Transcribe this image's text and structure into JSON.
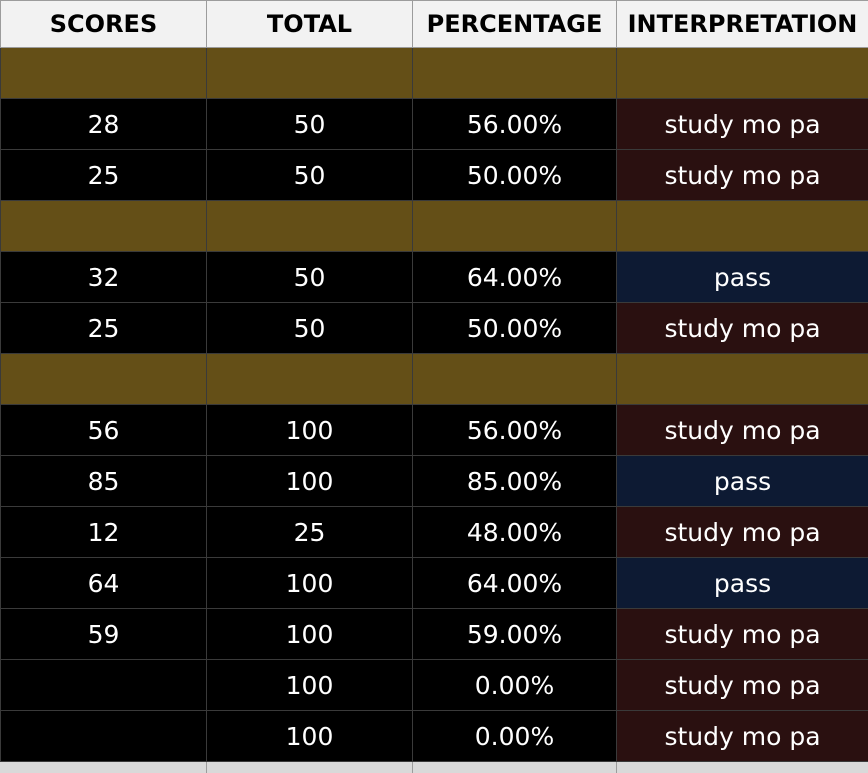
{
  "header": {
    "scores": "SCORES",
    "total": "TOTAL",
    "percentage": "PERCENTAGE",
    "interpretation": "INTERPRETATION"
  },
  "colors": {
    "band": "#644f17",
    "fail": "#2a1010",
    "pass": "#0d1a33",
    "header_bg": "#f2f2f2"
  },
  "rows": [
    {
      "type": "band"
    },
    {
      "score": "28",
      "total": "50",
      "percentage": "56.00%",
      "interpretation": "study mo pa",
      "status": "fail"
    },
    {
      "score": "25",
      "total": "50",
      "percentage": "50.00%",
      "interpretation": "study mo pa",
      "status": "fail"
    },
    {
      "type": "band"
    },
    {
      "score": "32",
      "total": "50",
      "percentage": "64.00%",
      "interpretation": "pass",
      "status": "pass"
    },
    {
      "score": "25",
      "total": "50",
      "percentage": "50.00%",
      "interpretation": "study mo pa",
      "status": "fail"
    },
    {
      "type": "band"
    },
    {
      "score": "56",
      "total": "100",
      "percentage": "56.00%",
      "interpretation": "study mo pa",
      "status": "fail"
    },
    {
      "score": "85",
      "total": "100",
      "percentage": "85.00%",
      "interpretation": "pass",
      "status": "pass"
    },
    {
      "score": "12",
      "total": "25",
      "percentage": "48.00%",
      "interpretation": "study mo pa",
      "status": "fail"
    },
    {
      "score": "64",
      "total": "100",
      "percentage": "64.00%",
      "interpretation": "pass",
      "status": "pass"
    },
    {
      "score": "59",
      "total": "100",
      "percentage": "59.00%",
      "interpretation": "study mo pa",
      "status": "fail"
    },
    {
      "score": "",
      "total": "100",
      "percentage": "0.00%",
      "interpretation": "study mo pa",
      "status": "fail"
    },
    {
      "score": "",
      "total": "100",
      "percentage": "0.00%",
      "interpretation": "study mo pa",
      "status": "fail"
    }
  ]
}
